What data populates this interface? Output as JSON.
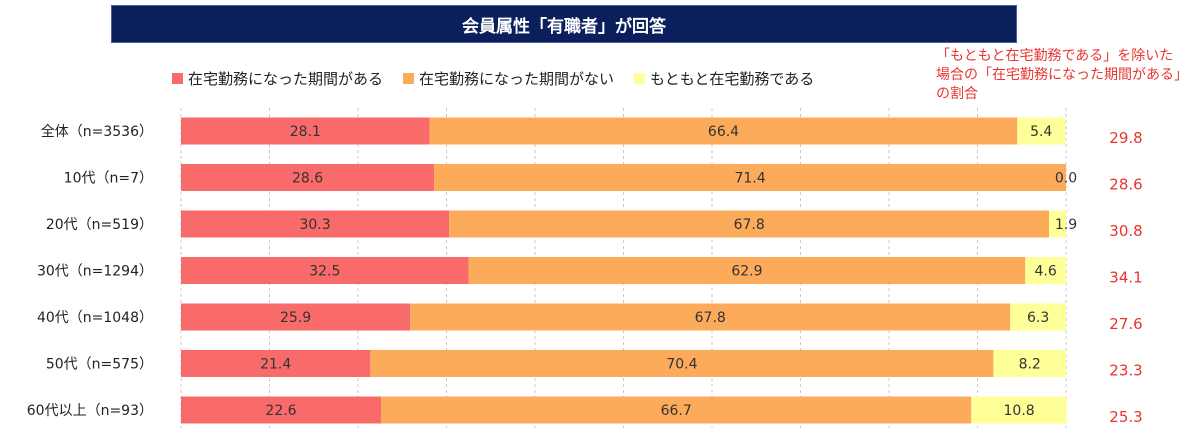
{
  "chart_data": {
    "type": "bar",
    "orientation": "horizontal",
    "stacked": true,
    "title": "会員属性「有職者」が回答",
    "categories": [
      "全体（n=3536）",
      "10代（n=7）",
      "20代（n=519）",
      "30代（n=1294）",
      "40代（n=1048）",
      "50代（n=575）",
      "60代以上（n=93）"
    ],
    "series": [
      {
        "name": "在宅勤務になった期間がある",
        "color": "#f96b6b",
        "values": [
          28.1,
          28.6,
          30.3,
          32.5,
          25.9,
          21.4,
          22.6
        ]
      },
      {
        "name": "在宅勤務になった期間がない",
        "color": "#fcab5a",
        "values": [
          66.4,
          71.4,
          67.8,
          62.9,
          67.8,
          70.4,
          66.7
        ]
      },
      {
        "name": "もともと在宅勤務である",
        "color": "#ffff99",
        "values": [
          5.4,
          0.0,
          1.9,
          4.6,
          6.3,
          8.2,
          10.8
        ]
      }
    ],
    "ratio_note": "「もともと在宅勤務である」を除いた場合の「在宅勤務になった期間がある」の割合",
    "ratio_values": [
      "29.8",
      "28.6",
      "30.8",
      "34.1",
      "27.6",
      "23.3",
      "25.3"
    ],
    "xlim": [
      0,
      100
    ],
    "legend_position": "top",
    "grid": true
  }
}
